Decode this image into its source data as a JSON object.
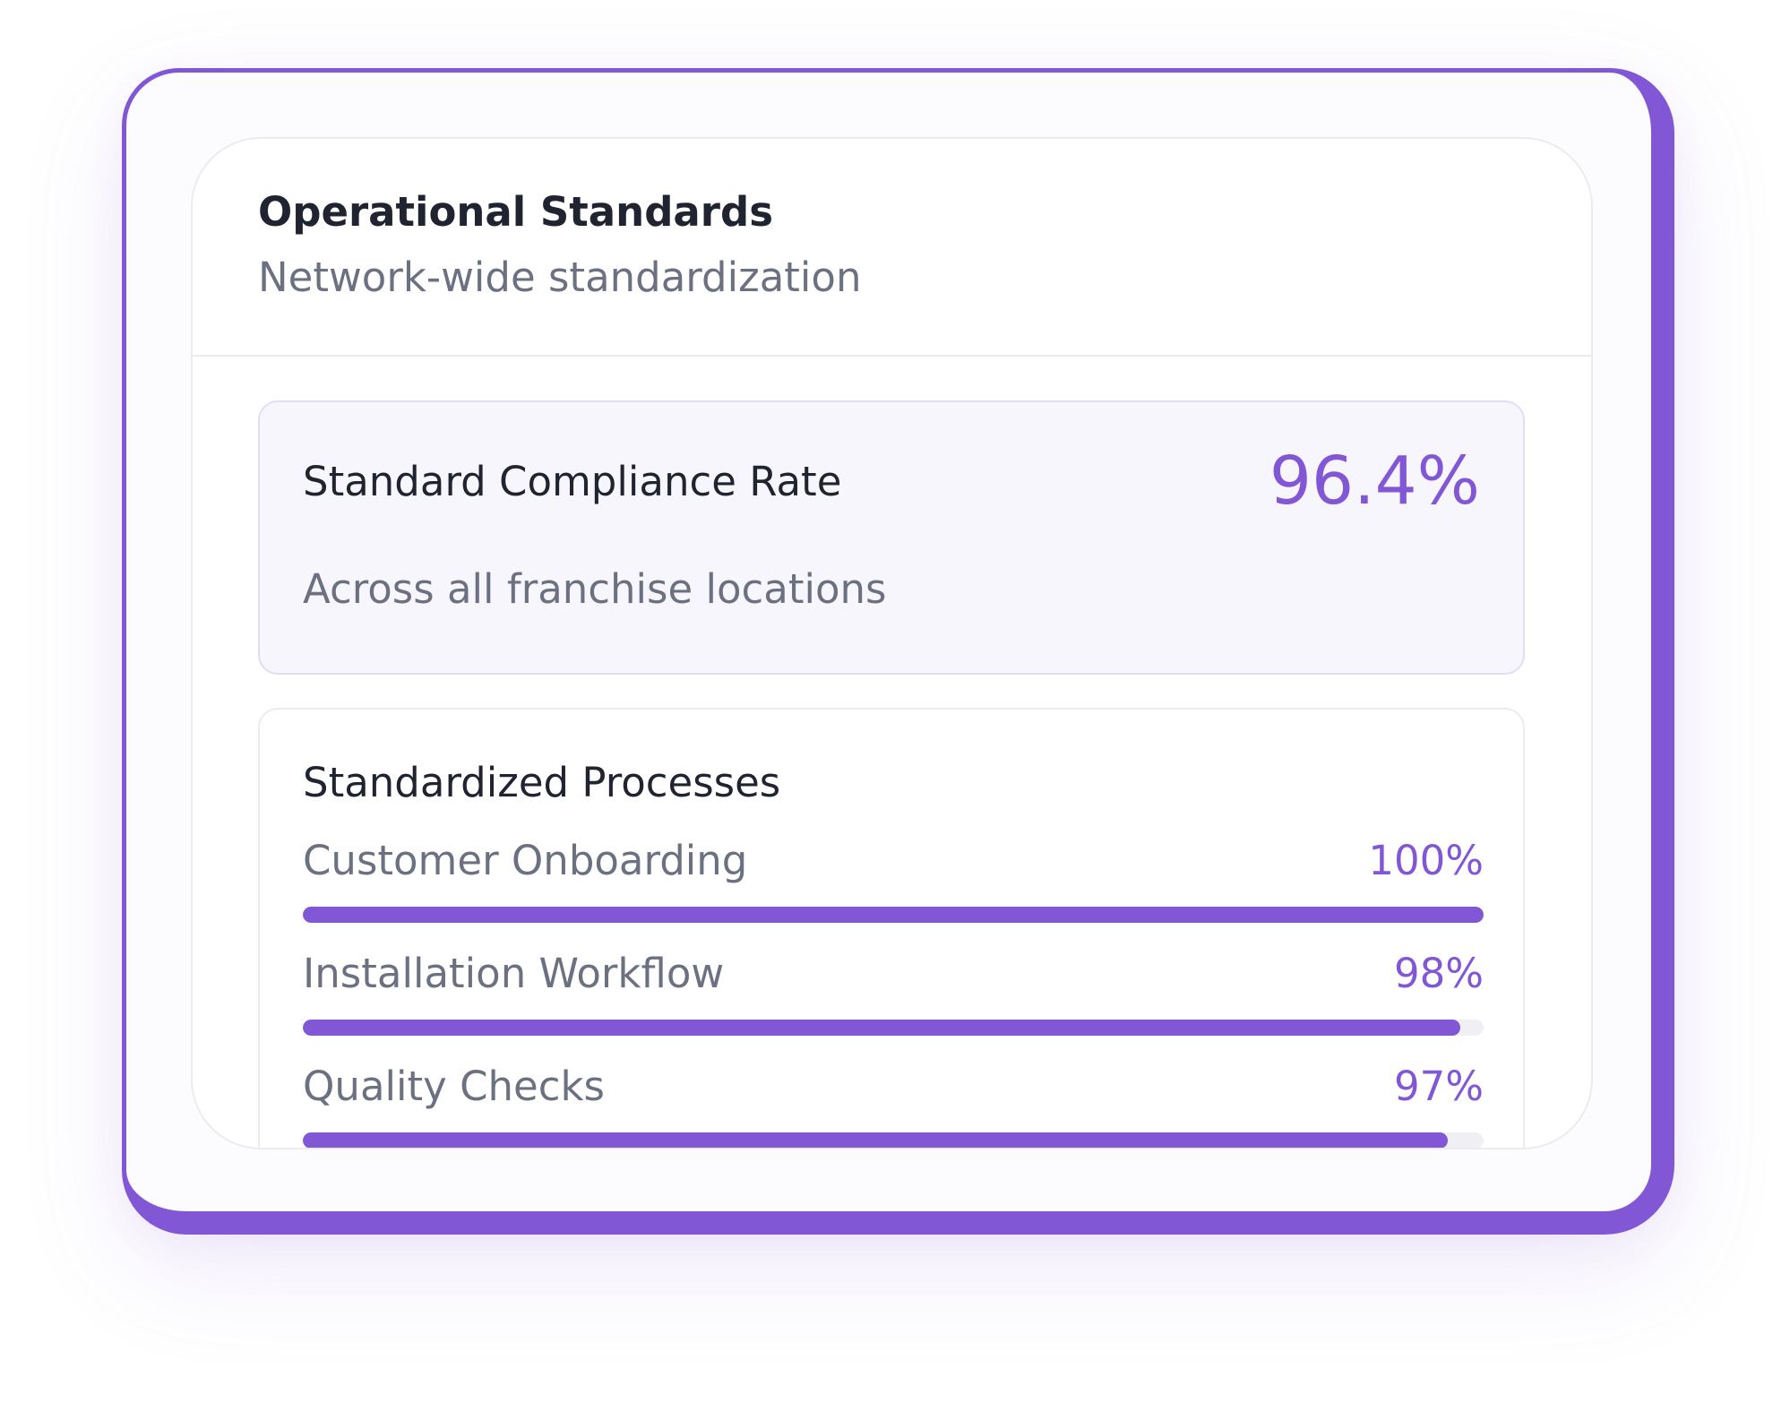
{
  "card": {
    "title": "Operational Standards",
    "subtitle": "Network-wide standardization"
  },
  "compliance": {
    "label": "Standard Compliance Rate",
    "value": "96.4%",
    "caption": "Across all franchise locations"
  },
  "processes": {
    "title": "Standardized Processes",
    "items": [
      {
        "name": "Customer Onboarding",
        "percent_label": "100%",
        "progress": 100
      },
      {
        "name": "Installation Workflow",
        "percent_label": "98%",
        "progress": 98
      },
      {
        "name": "Quality Checks",
        "percent_label": "97%",
        "progress": 97
      }
    ]
  },
  "colors": {
    "accent": "#8257d6",
    "title_text": "#1f2430",
    "muted_text": "#6b7181",
    "metric_background": "#f8f6fd",
    "track": "#f0f0f4"
  }
}
